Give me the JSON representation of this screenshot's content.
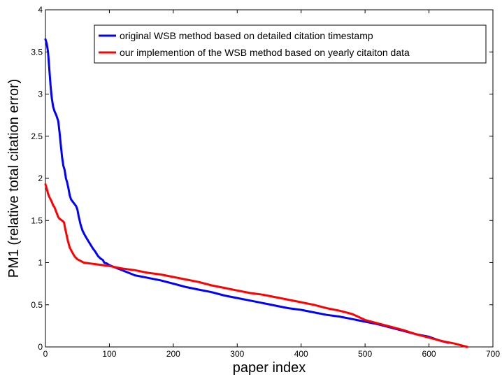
{
  "chart_data": {
    "type": "line",
    "title": "",
    "xlabel": "paper index",
    "ylabel": "PM1 (relative total citation error)",
    "xlim": [
      0,
      700
    ],
    "ylim": [
      0,
      4
    ],
    "x_ticks": [
      "0",
      "100",
      "200",
      "300",
      "400",
      "500",
      "600",
      "700"
    ],
    "y_ticks": [
      "0",
      "0.5",
      "1",
      "1.5",
      "2",
      "2.5",
      "3",
      "3.5",
      "4"
    ],
    "grid": false,
    "legend_position": "top-right",
    "series": [
      {
        "name": "original WSB method based on detailed citation timestamp",
        "color": "#0000ff",
        "points": [
          [
            0,
            3.65
          ],
          [
            2,
            3.6
          ],
          [
            4,
            3.5
          ],
          [
            6,
            3.3
          ],
          [
            8,
            3.1
          ],
          [
            10,
            2.95
          ],
          [
            12,
            2.85
          ],
          [
            14,
            2.8
          ],
          [
            17,
            2.75
          ],
          [
            20,
            2.68
          ],
          [
            22,
            2.55
          ],
          [
            24,
            2.4
          ],
          [
            26,
            2.25
          ],
          [
            28,
            2.15
          ],
          [
            30,
            2.1
          ],
          [
            32,
            2.0
          ],
          [
            34,
            1.95
          ],
          [
            36,
            1.88
          ],
          [
            38,
            1.8
          ],
          [
            40,
            1.75
          ],
          [
            43,
            1.72
          ],
          [
            46,
            1.69
          ],
          [
            48,
            1.67
          ],
          [
            50,
            1.63
          ],
          [
            52,
            1.55
          ],
          [
            55,
            1.45
          ],
          [
            58,
            1.38
          ],
          [
            62,
            1.32
          ],
          [
            66,
            1.27
          ],
          [
            70,
            1.22
          ],
          [
            74,
            1.17
          ],
          [
            78,
            1.13
          ],
          [
            82,
            1.08
          ],
          [
            86,
            1.05
          ],
          [
            90,
            1.03
          ],
          [
            92,
            1.0
          ],
          [
            96,
            0.99
          ],
          [
            100,
            0.97
          ],
          [
            110,
            0.94
          ],
          [
            120,
            0.91
          ],
          [
            130,
            0.88
          ],
          [
            140,
            0.85
          ],
          [
            160,
            0.82
          ],
          [
            180,
            0.79
          ],
          [
            200,
            0.75
          ],
          [
            220,
            0.71
          ],
          [
            240,
            0.68
          ],
          [
            260,
            0.65
          ],
          [
            280,
            0.61
          ],
          [
            300,
            0.58
          ],
          [
            320,
            0.55
          ],
          [
            340,
            0.52
          ],
          [
            360,
            0.49
          ],
          [
            380,
            0.46
          ],
          [
            400,
            0.44
          ],
          [
            420,
            0.41
          ],
          [
            440,
            0.38
          ],
          [
            460,
            0.36
          ],
          [
            480,
            0.33
          ],
          [
            500,
            0.3
          ],
          [
            520,
            0.27
          ],
          [
            540,
            0.23
          ],
          [
            560,
            0.19
          ],
          [
            580,
            0.15
          ],
          [
            600,
            0.12
          ],
          [
            615,
            0.08
          ],
          [
            625,
            0.06
          ],
          [
            630,
            0.05
          ]
        ]
      },
      {
        "name": "our implemention of the WSB method based on yearly citaiton data",
        "color": "#ff0000",
        "points": [
          [
            0,
            1.93
          ],
          [
            2,
            1.88
          ],
          [
            4,
            1.82
          ],
          [
            6,
            1.78
          ],
          [
            8,
            1.75
          ],
          [
            10,
            1.72
          ],
          [
            12,
            1.68
          ],
          [
            14,
            1.66
          ],
          [
            16,
            1.62
          ],
          [
            18,
            1.58
          ],
          [
            20,
            1.54
          ],
          [
            22,
            1.52
          ],
          [
            26,
            1.5
          ],
          [
            29,
            1.48
          ],
          [
            31,
            1.4
          ],
          [
            33,
            1.33
          ],
          [
            35,
            1.26
          ],
          [
            38,
            1.18
          ],
          [
            42,
            1.12
          ],
          [
            46,
            1.07
          ],
          [
            50,
            1.04
          ],
          [
            55,
            1.02
          ],
          [
            60,
            1.0
          ],
          [
            70,
            0.99
          ],
          [
            80,
            0.98
          ],
          [
            90,
            0.97
          ],
          [
            100,
            0.96
          ],
          [
            120,
            0.93
          ],
          [
            140,
            0.91
          ],
          [
            160,
            0.88
          ],
          [
            180,
            0.86
          ],
          [
            200,
            0.83
          ],
          [
            220,
            0.8
          ],
          [
            240,
            0.77
          ],
          [
            260,
            0.73
          ],
          [
            280,
            0.7
          ],
          [
            300,
            0.67
          ],
          [
            320,
            0.64
          ],
          [
            340,
            0.62
          ],
          [
            360,
            0.59
          ],
          [
            380,
            0.56
          ],
          [
            400,
            0.53
          ],
          [
            420,
            0.5
          ],
          [
            440,
            0.46
          ],
          [
            460,
            0.43
          ],
          [
            480,
            0.39
          ],
          [
            500,
            0.32
          ],
          [
            520,
            0.28
          ],
          [
            540,
            0.24
          ],
          [
            560,
            0.2
          ],
          [
            580,
            0.15
          ],
          [
            600,
            0.11
          ],
          [
            620,
            0.07
          ],
          [
            640,
            0.04
          ],
          [
            660,
            0.0
          ]
        ]
      }
    ]
  }
}
